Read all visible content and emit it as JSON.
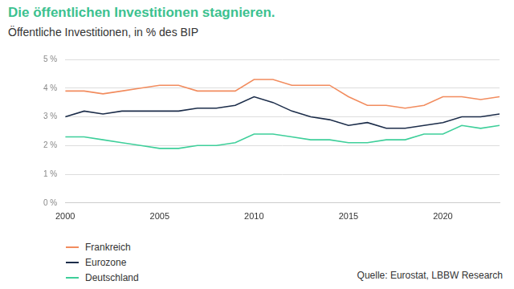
{
  "chart_data": {
    "type": "line",
    "title": "Die öffentlichen Investitionen stagnieren.",
    "subtitle": "Öffentliche Investitionen, in % des BIP",
    "source": "Quelle: Eurostat, LBBW Research",
    "x": [
      2000,
      2001,
      2002,
      2003,
      2004,
      2005,
      2006,
      2007,
      2008,
      2009,
      2010,
      2011,
      2012,
      2013,
      2014,
      2015,
      2016,
      2017,
      2018,
      2019,
      2020,
      2021,
      2022,
      2023
    ],
    "series": [
      {
        "name": "Frankreich",
        "color": "#f28c5e",
        "values": [
          3.9,
          3.9,
          3.8,
          3.9,
          4.0,
          4.1,
          4.1,
          3.9,
          3.9,
          3.9,
          4.3,
          4.3,
          4.1,
          4.1,
          4.1,
          3.7,
          3.4,
          3.4,
          3.3,
          3.4,
          3.7,
          3.7,
          3.6,
          3.7
        ]
      },
      {
        "name": "Eurozone",
        "color": "#1c2d4a",
        "values": [
          3.0,
          3.2,
          3.1,
          3.2,
          3.2,
          3.2,
          3.2,
          3.3,
          3.3,
          3.4,
          3.7,
          3.5,
          3.2,
          3.0,
          2.9,
          2.7,
          2.8,
          2.6,
          2.6,
          2.7,
          2.8,
          3.0,
          3.0,
          3.1
        ]
      },
      {
        "name": "Deutschland",
        "color": "#3ecf9a",
        "values": [
          2.3,
          2.3,
          2.2,
          2.1,
          2.0,
          1.9,
          1.9,
          2.0,
          2.0,
          2.1,
          2.4,
          2.4,
          2.3,
          2.2,
          2.2,
          2.1,
          2.1,
          2.2,
          2.2,
          2.4,
          2.4,
          2.7,
          2.6,
          2.7
        ]
      }
    ],
    "xlim": [
      2000,
      2023
    ],
    "xticks": [
      2000,
      2005,
      2010,
      2015,
      2020
    ],
    "ylim": [
      0,
      5
    ],
    "yticks": [
      {
        "value": 0,
        "label": "0 %"
      },
      {
        "value": 1,
        "label": "1 %"
      },
      {
        "value": 2,
        "label": "2 %"
      },
      {
        "value": 3,
        "label": "3 %"
      },
      {
        "value": 4,
        "label": "4 %"
      },
      {
        "value": 5,
        "label": "5 %"
      }
    ],
    "grid": true,
    "legend": "bottom-left"
  }
}
